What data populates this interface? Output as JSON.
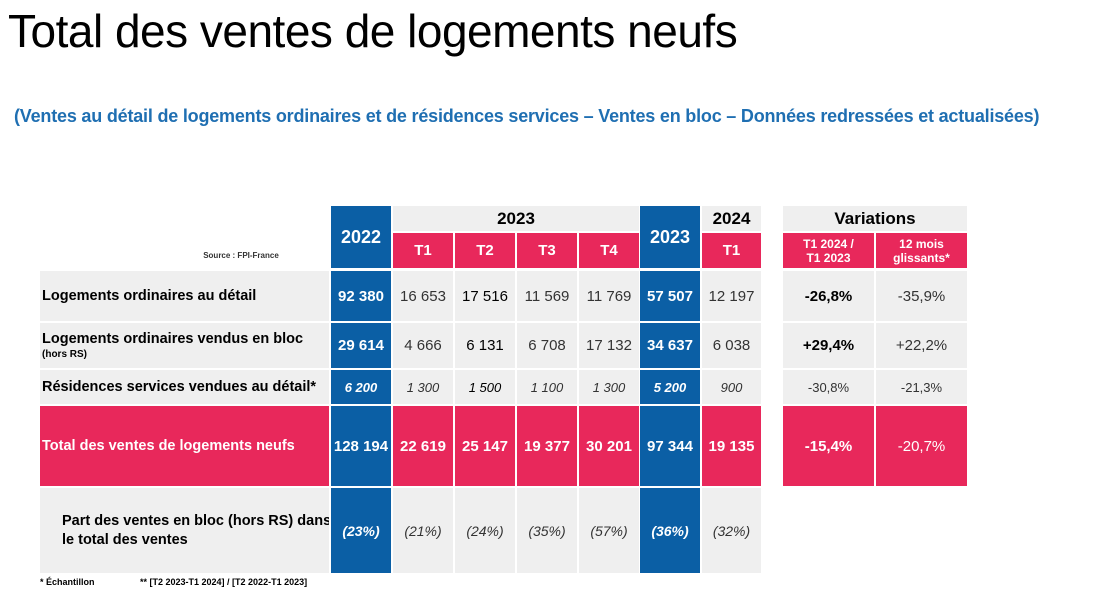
{
  "title": "Total des ventes de logements neufs",
  "subtitle": "(Ventes au détail de logements ordinaires et de résidences services – Ventes en bloc – Données redressées et actualisées)",
  "source": "Source : FPI-France",
  "headers": {
    "year_2022": "2022",
    "year_2023_group": "2023",
    "q1": "T1",
    "q2": "T2",
    "q3": "T3",
    "q4": "T4",
    "year_2023_total": "2023",
    "year_2024": "2024",
    "q1_2024": "T1",
    "variations": "Variations",
    "var_t1": "T1 2024 / T1 2023",
    "var_12m": "12 mois glissants*"
  },
  "rows": [
    {
      "label": "Logements ordinaires au détail",
      "sublabel": "",
      "v2022": "92 380",
      "t1": "16 653",
      "t2": "17 516",
      "t3": "11 569",
      "t4": "11 769",
      "v2023": "57 507",
      "t1_2024": "12 197",
      "var_t1": "-26,8%",
      "var_12m": "-35,9%"
    },
    {
      "label": "Logements ordinaires vendus en bloc",
      "sublabel": "(hors RS)",
      "v2022": "29 614",
      "t1": "4 666",
      "t2": "6 131",
      "t3": "6 708",
      "t4": "17 132",
      "v2023": "34 637",
      "t1_2024": "6 038",
      "var_t1": "+29,4%",
      "var_12m": "+22,2%"
    },
    {
      "label": "Résidences services vendues au détail*",
      "sublabel": "",
      "v2022": "6 200",
      "t1": "1 300",
      "t2": "1 500",
      "t3": "1 100",
      "t4": "1 300",
      "v2023": "5 200",
      "t1_2024": "900",
      "var_t1": "-30,8%",
      "var_12m": "-21,3%"
    }
  ],
  "total": {
    "label": "Total des ventes de logements neufs",
    "v2022": "128 194",
    "t1": "22 619",
    "t2": "25 147",
    "t3": "19 377",
    "t4": "30 201",
    "v2023": "97 344",
    "t1_2024": "19 135",
    "var_t1": "-15,4%",
    "var_12m": "-20,7%"
  },
  "share": {
    "label_line1": "Part des ventes en bloc (hors RS) dans",
    "label_line2": "le total des ventes",
    "v2022": "(23%)",
    "t1": "(21%)",
    "t2": "(24%)",
    "t3": "(35%)",
    "t4": "(57%)",
    "v2023": "(36%)",
    "t1_2024": "(32%)"
  },
  "footnotes": {
    "sample": "* Échantillon",
    "period": "** [T2 2023-T1 2024] / [T2 2022-T1 2023]"
  }
}
